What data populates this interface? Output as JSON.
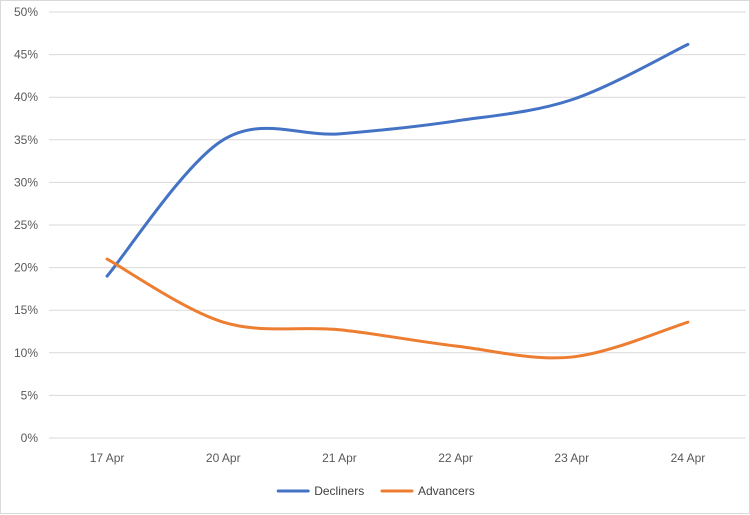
{
  "chart_data": {
    "type": "line",
    "categories": [
      "17 Apr",
      "20 Apr",
      "21 Apr",
      "22 Apr",
      "23 Apr",
      "24 Apr"
    ],
    "series": [
      {
        "name": "Decliners",
        "values": [
          19.0,
          35.0,
          35.7,
          37.2,
          39.7,
          46.2
        ],
        "color": "#4472C4"
      },
      {
        "name": "Advancers",
        "values": [
          21.0,
          13.6,
          12.7,
          10.8,
          9.5,
          13.6
        ],
        "color": "#ED7D31"
      }
    ],
    "y_ticks": [
      "0%",
      "5%",
      "10%",
      "15%",
      "20%",
      "25%",
      "30%",
      "35%",
      "40%",
      "45%",
      "50%"
    ],
    "ylim": [
      0,
      50
    ],
    "grid": true,
    "legend": "bottom",
    "smooth": true
  }
}
